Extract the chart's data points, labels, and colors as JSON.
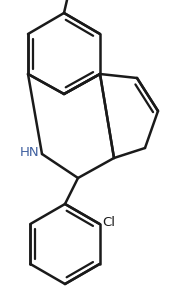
{
  "background_color": "#ffffff",
  "line_color": "#1a1a1a",
  "line_width": 1.8,
  "figsize": [
    1.72,
    3.06
  ],
  "dpi": 100,
  "hn_color": "#4060a0",
  "hn_fontsize": 9.5,
  "cl_fontsize": 9.5,
  "cl_color": "#1a1a1a"
}
